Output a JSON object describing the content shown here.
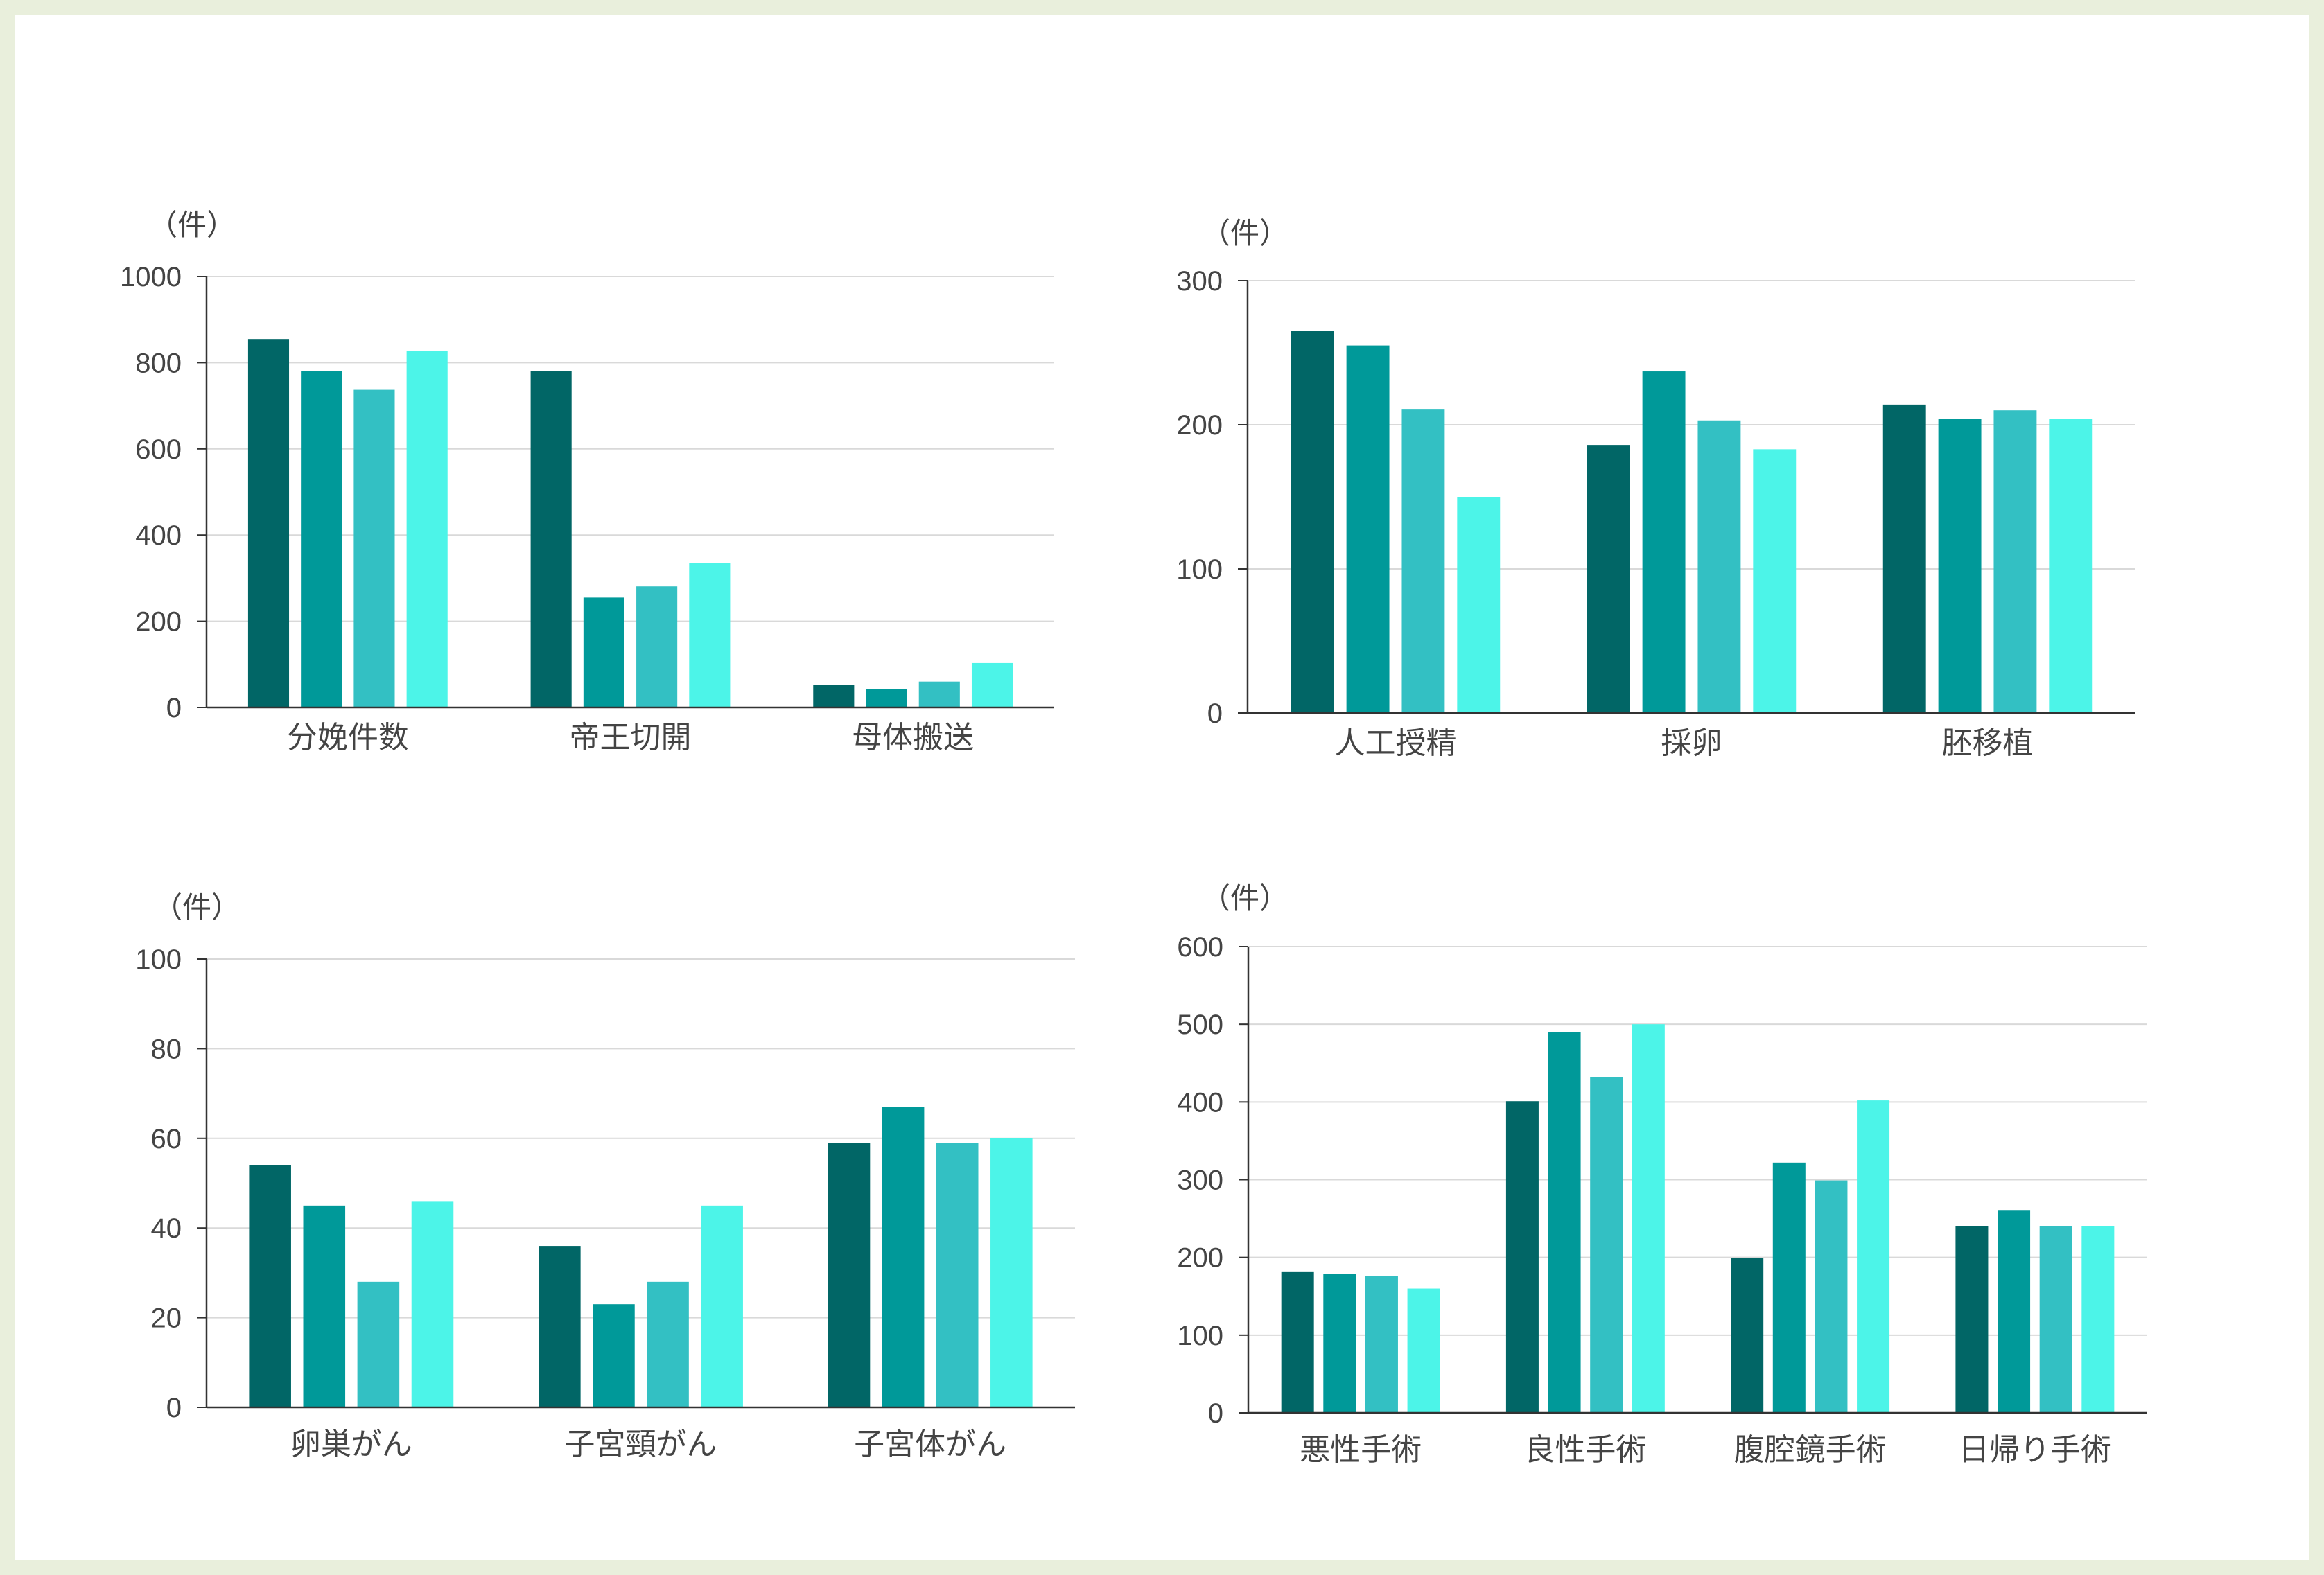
{
  "charts": [
    {
      "id": "chart-obstetrics",
      "unit_label": "（件）",
      "chart_data": {
        "type": "bar",
        "categories": [
          "分娩件数",
          "帝王切開",
          "母体搬送"
        ],
        "series": [
          {
            "values": [
              855,
              780,
              53
            ]
          },
          {
            "values": [
              780,
              255,
              42
            ]
          },
          {
            "values": [
              737,
              281,
              60
            ]
          },
          {
            "values": [
              828,
              335,
              103
            ]
          }
        ],
        "ylim": [
          0,
          1000
        ],
        "yticks": [
          0,
          200,
          400,
          600,
          800,
          1000
        ],
        "grid": true
      }
    },
    {
      "id": "chart-fertility",
      "unit_label": "（件）",
      "chart_data": {
        "type": "bar",
        "categories": [
          "人工授精",
          "採卵",
          "胚移植"
        ],
        "series": [
          {
            "values": [
              265,
              186,
              214
            ]
          },
          {
            "values": [
              255,
              237,
              204
            ]
          },
          {
            "values": [
              211,
              203,
              210
            ]
          },
          {
            "values": [
              150,
              183,
              204
            ]
          }
        ],
        "ylim": [
          0,
          300
        ],
        "yticks": [
          0,
          100,
          200,
          300
        ],
        "grid": true
      }
    },
    {
      "id": "chart-cancer",
      "unit_label": "（件）",
      "chart_data": {
        "type": "bar",
        "categories": [
          "卵巣がん",
          "子宮頸がん",
          "子宮体がん"
        ],
        "series": [
          {
            "values": [
              54,
              36,
              59
            ]
          },
          {
            "values": [
              45,
              23,
              67
            ]
          },
          {
            "values": [
              28,
              28,
              59
            ]
          },
          {
            "values": [
              46,
              45,
              60
            ]
          }
        ],
        "ylim": [
          0,
          100
        ],
        "yticks": [
          0,
          20,
          40,
          60,
          80,
          100
        ],
        "grid": true
      }
    },
    {
      "id": "chart-surgery",
      "unit_label": "（件）",
      "chart_data": {
        "type": "bar",
        "categories": [
          "悪性手術",
          "良性手術",
          "腹腔鏡手術",
          "日帰り手術"
        ],
        "series": [
          {
            "values": [
              182,
              401,
              199,
              240
            ]
          },
          {
            "values": [
              179,
              490,
              322,
              261
            ]
          },
          {
            "values": [
              176,
              432,
              299,
              240
            ]
          },
          {
            "values": [
              160,
              500,
              402,
              240
            ]
          }
        ],
        "ylim": [
          0,
          600
        ],
        "yticks": [
          0,
          100,
          200,
          300,
          400,
          500,
          600
        ],
        "grid": true
      }
    }
  ],
  "colors": {
    "series": [
      "#016666",
      "#009999",
      "#33c0c3",
      "#4cf4e8"
    ],
    "grid": "#d9d9d9",
    "axis": "#333333",
    "text": "#444444",
    "background": "#ffffff",
    "frame": "#e9efdc"
  }
}
